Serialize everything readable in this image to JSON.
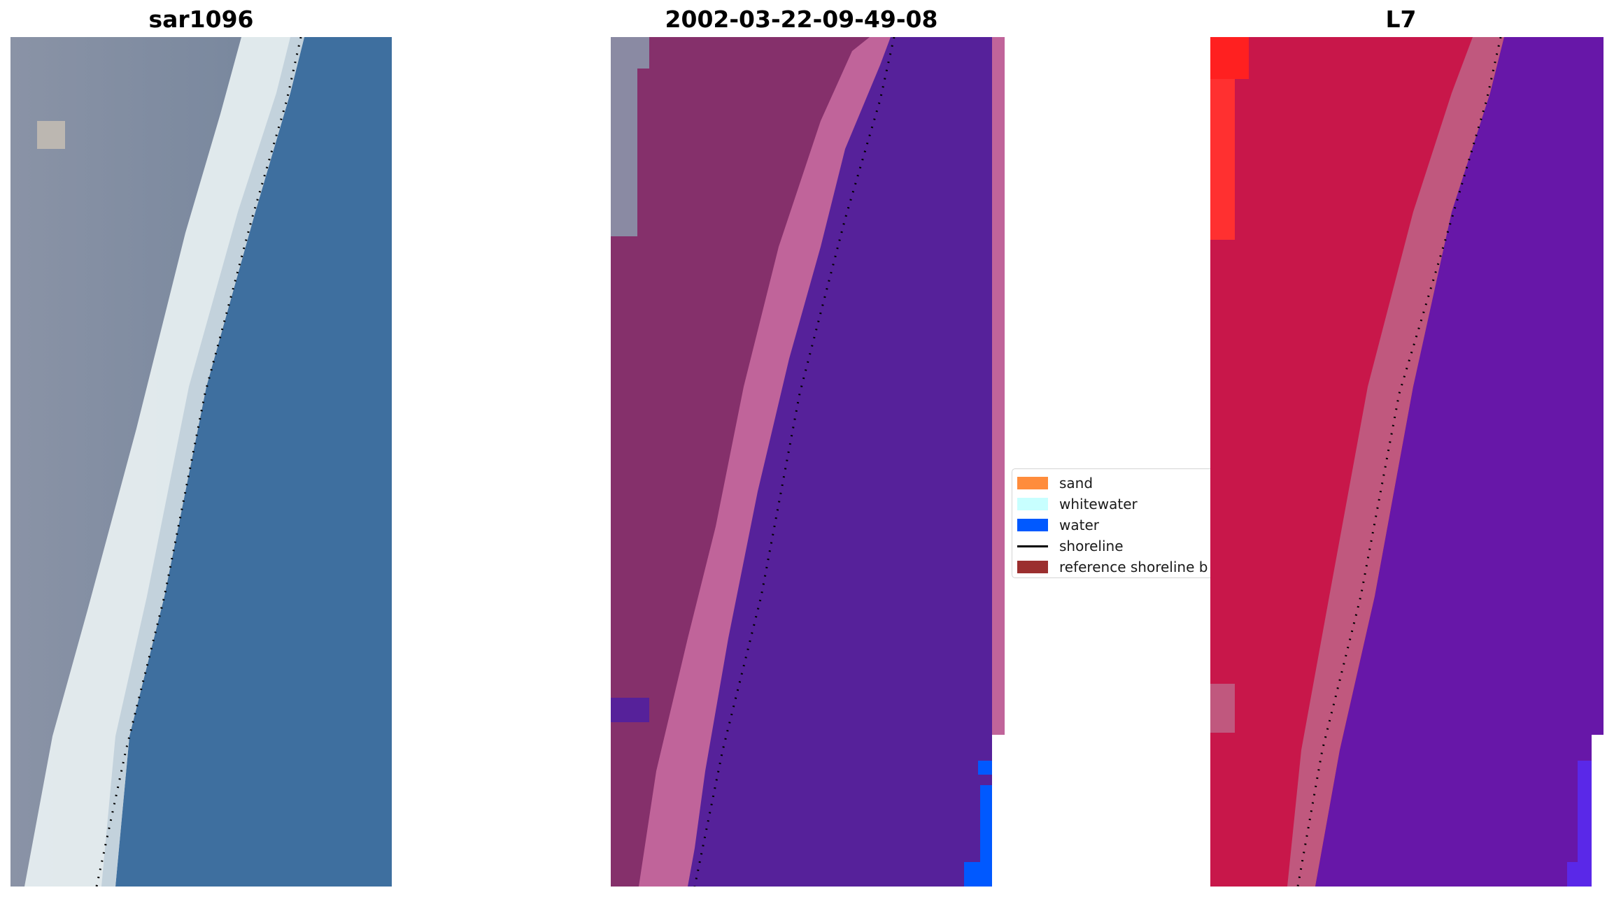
{
  "panels": {
    "rgb": {
      "title": "sar1096"
    },
    "classified": {
      "title": "2002-03-22-09-49-08"
    },
    "mndwi": {
      "title": "L7"
    }
  },
  "legend": {
    "items": [
      {
        "label": "sand",
        "color": "#ff8c3c",
        "kind": "patch"
      },
      {
        "label": "whitewater",
        "color": "#c8ffff",
        "kind": "patch"
      },
      {
        "label": "water",
        "color": "#0059ff",
        "kind": "patch"
      },
      {
        "label": "shoreline",
        "color": "#000000",
        "kind": "line"
      },
      {
        "label": "reference shoreline b",
        "color": "#9b2f2f",
        "kind": "patch"
      }
    ]
  },
  "colors": {
    "rgb_land": "#7d8aa2",
    "rgb_whitewater": "#e6eef0",
    "rgb_sea": "#3e6f9f",
    "cls_land": "#85306b",
    "cls_beach": "#c0649a",
    "cls_water": "#56219a",
    "cls_water_class": "#0059ff",
    "ndwi_land": "#c8174a",
    "ndwi_beach": "#c0587e",
    "ndwi_water": "#6717a8",
    "ndwi_bright": "#ff2020",
    "shoreline": "#000000"
  }
}
